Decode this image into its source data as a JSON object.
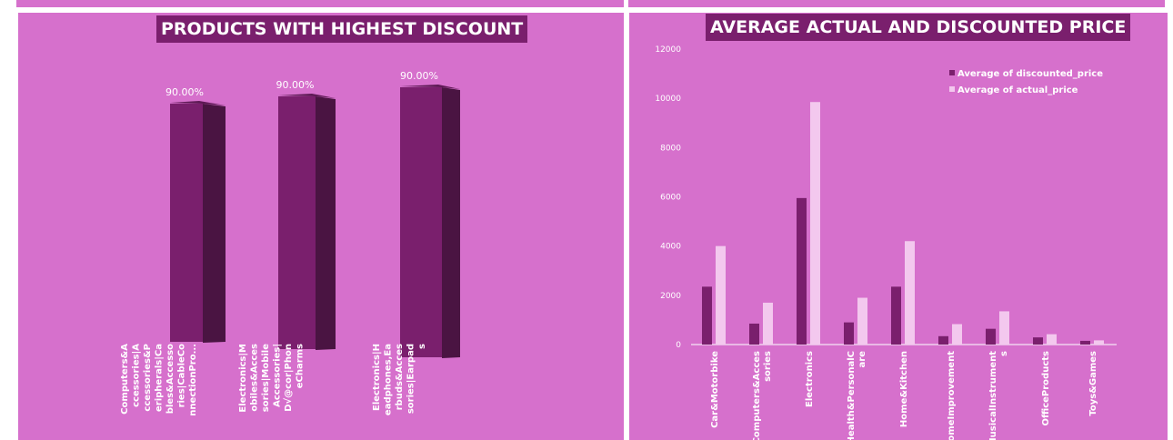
{
  "colors": {
    "panel": "#d670cc",
    "title_bg": "#7a1f6d",
    "bar_front": "#7a1f6d",
    "bar_side": "#4a1442",
    "discounted": "#7a1f6d",
    "actual": "#f3c8ee"
  },
  "chart_data": [
    {
      "type": "bar",
      "title": "PRODUCTS WITH HIGHEST DISCOUNT",
      "categories": [
        [
          "Computers&A",
          "ccessories|A",
          "ccessories&P",
          "eripherals|Ca",
          "bles&Accesso",
          "ries|CableCo",
          "nnectionPro..."
        ],
        [
          "Electronics|M",
          "obiles&Acces",
          "sories|Mobile",
          "Accessories|",
          "D√@cor|Phon",
          "eCharms"
        ],
        [
          "Electronics|H",
          "eadphones,Ea",
          "rbuds&Acces",
          "sories|Earpad",
          "s"
        ]
      ],
      "values": [
        90,
        90,
        90
      ],
      "data_labels": [
        "90.00%",
        "90.00%",
        "90.00%"
      ]
    },
    {
      "type": "bar",
      "title": "AVERAGE ACTUAL AND DISCOUNTED PRICE",
      "categories": [
        [
          "Car&Motorbike"
        ],
        [
          "Computers&Acces",
          "sories"
        ],
        [
          "Electronics"
        ],
        [
          "Health&PersonalC",
          "are"
        ],
        [
          "Home&Kitchen"
        ],
        [
          "HomeImprovement"
        ],
        [
          "MusicalInstrument",
          "s"
        ],
        [
          "OfficeProducts"
        ],
        [
          "Toys&Games"
        ]
      ],
      "series": [
        {
          "name": "Average of discounted_price",
          "values": [
            2350,
            850,
            5950,
            900,
            2350,
            340,
            640,
            290,
            150
          ]
        },
        {
          "name": "Average of actual_price",
          "values": [
            4000,
            1700,
            9850,
            1900,
            4200,
            830,
            1350,
            420,
            170
          ]
        }
      ],
      "y_ticks": [
        "0",
        "2000",
        "4000",
        "6000",
        "8000",
        "10000",
        "12000"
      ],
      "ylim": [
        0,
        12000
      ],
      "legend": "top-right"
    }
  ]
}
